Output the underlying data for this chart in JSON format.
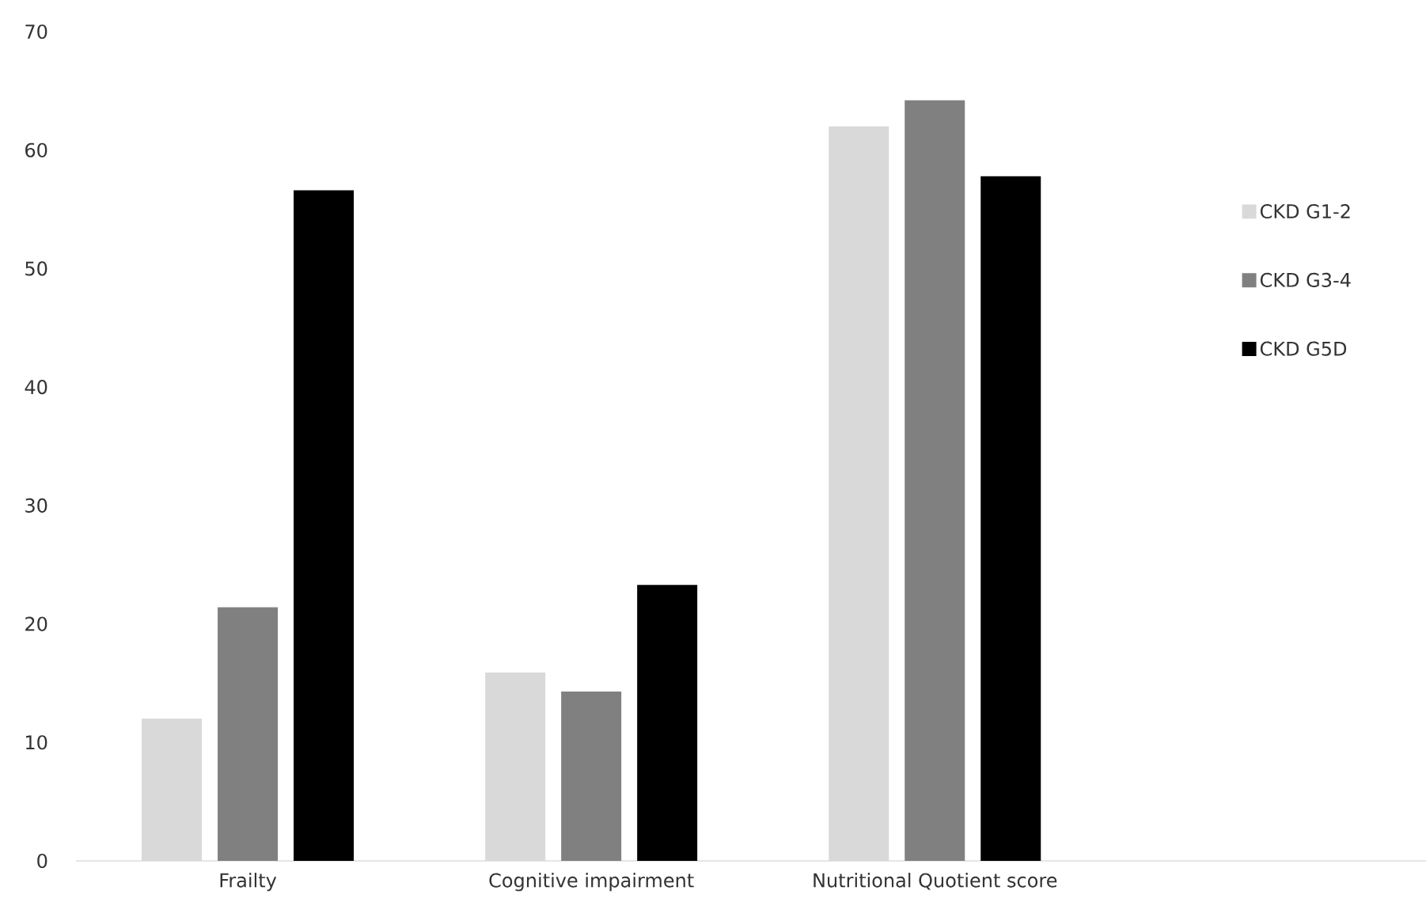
{
  "chart_data": {
    "type": "bar",
    "categories": [
      "Frailty",
      "Cognitive impairment",
      "Nutritional Quotient score"
    ],
    "series": [
      {
        "name": "CKD G1-2",
        "color": "#d9d9d9",
        "values": [
          12.0,
          15.9,
          62.0
        ]
      },
      {
        "name": "CKD G3-4",
        "color": "#808080",
        "values": [
          21.4,
          14.3,
          64.2
        ]
      },
      {
        "name": "CKD G5D",
        "color": "#000000",
        "values": [
          56.6,
          23.3,
          57.8
        ]
      }
    ],
    "ylim": [
      0,
      70
    ],
    "yticks": [
      0,
      10,
      20,
      30,
      40,
      50,
      60,
      70
    ],
    "grid": false,
    "legend": "right"
  }
}
